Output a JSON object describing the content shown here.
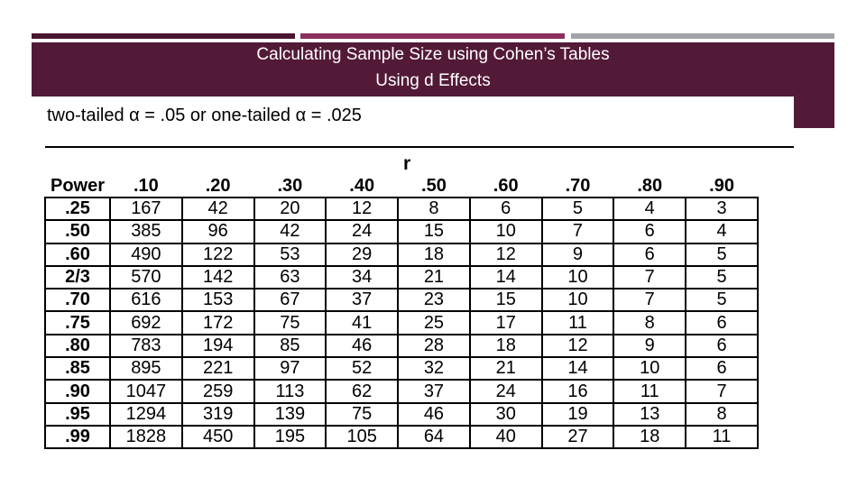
{
  "header": {
    "title_line1": "Calculating Sample Size using Cohen’s Tables",
    "title_line2": "Using d Effects"
  },
  "alpha_note": "two-tailed α = .05 or one-tailed α = .025",
  "table": {
    "group_label": "r",
    "corner_label": "Power",
    "columns": [
      ".10",
      ".20",
      ".30",
      ".40",
      ".50",
      ".60",
      ".70",
      ".80",
      ".90"
    ],
    "rows": [
      {
        "power": ".25",
        "values": [
          "167",
          "42",
          "20",
          "12",
          "8",
          "6",
          "5",
          "4",
          "3"
        ]
      },
      {
        "power": ".50",
        "values": [
          "385",
          "96",
          "42",
          "24",
          "15",
          "10",
          "7",
          "6",
          "4"
        ]
      },
      {
        "power": ".60",
        "values": [
          "490",
          "122",
          "53",
          "29",
          "18",
          "12",
          "9",
          "6",
          "5"
        ]
      },
      {
        "power": "2/3",
        "values": [
          "570",
          "142",
          "63",
          "34",
          "21",
          "14",
          "10",
          "7",
          "5"
        ]
      },
      {
        "power": ".70",
        "values": [
          "616",
          "153",
          "67",
          "37",
          "23",
          "15",
          "10",
          "7",
          "5"
        ]
      },
      {
        "power": ".75",
        "values": [
          "692",
          "172",
          "75",
          "41",
          "25",
          "17",
          "11",
          "8",
          "6"
        ]
      },
      {
        "power": ".80",
        "values": [
          "783",
          "194",
          "85",
          "46",
          "28",
          "18",
          "12",
          "9",
          "6"
        ]
      },
      {
        "power": ".85",
        "values": [
          "895",
          "221",
          "97",
          "52",
          "32",
          "21",
          "14",
          "10",
          "6"
        ]
      },
      {
        "power": ".90",
        "values": [
          "1047",
          "259",
          "113",
          "62",
          "37",
          "24",
          "16",
          "11",
          "7"
        ]
      },
      {
        "power": ".95",
        "values": [
          "1294",
          "319",
          "139",
          "75",
          "46",
          "30",
          "19",
          "13",
          "8"
        ]
      },
      {
        "power": ".99",
        "values": [
          "1828",
          "450",
          "195",
          "105",
          "64",
          "40",
          "27",
          "18",
          "11"
        ]
      }
    ]
  },
  "colors": {
    "header_band": "#531a38",
    "accent_dark": "#4a1530",
    "accent_mid": "#8a2f5e",
    "accent_gray": "#a0a4a8"
  }
}
